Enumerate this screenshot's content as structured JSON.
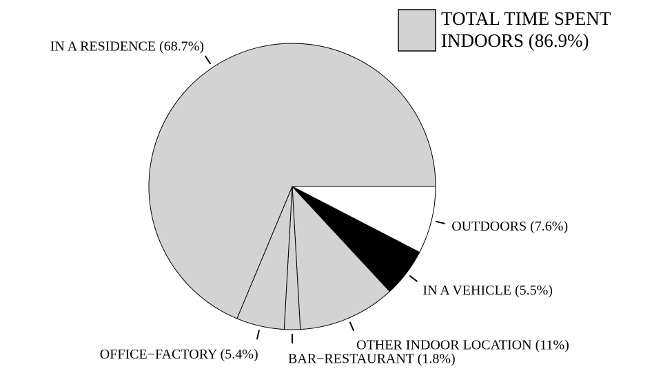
{
  "chart_data": {
    "type": "pie",
    "categories": [
      "OUTDOORS (7.6%)",
      "IN A VEHICLE (5.5%)",
      "OTHER INDOOR LOCATION (11%)",
      "BAR−RESTAURANT (1.8%)",
      "OFFICE−FACTORY (5.4%)",
      "IN A RESIDENCE (68.7%)"
    ],
    "values": [
      7.6,
      5.5,
      11,
      1.8,
      5.4,
      68.7
    ],
    "colors": [
      "#ffffff",
      "#000000",
      "#d3d3d3",
      "#d3d3d3",
      "#d3d3d3",
      "#d3d3d3"
    ],
    "legend": {
      "lines": [
        "TOTAL TIME SPENT",
        "INDOORS (86.9%)"
      ],
      "value": 86.9,
      "color": "#d3d3d3",
      "position": "upper right"
    }
  }
}
